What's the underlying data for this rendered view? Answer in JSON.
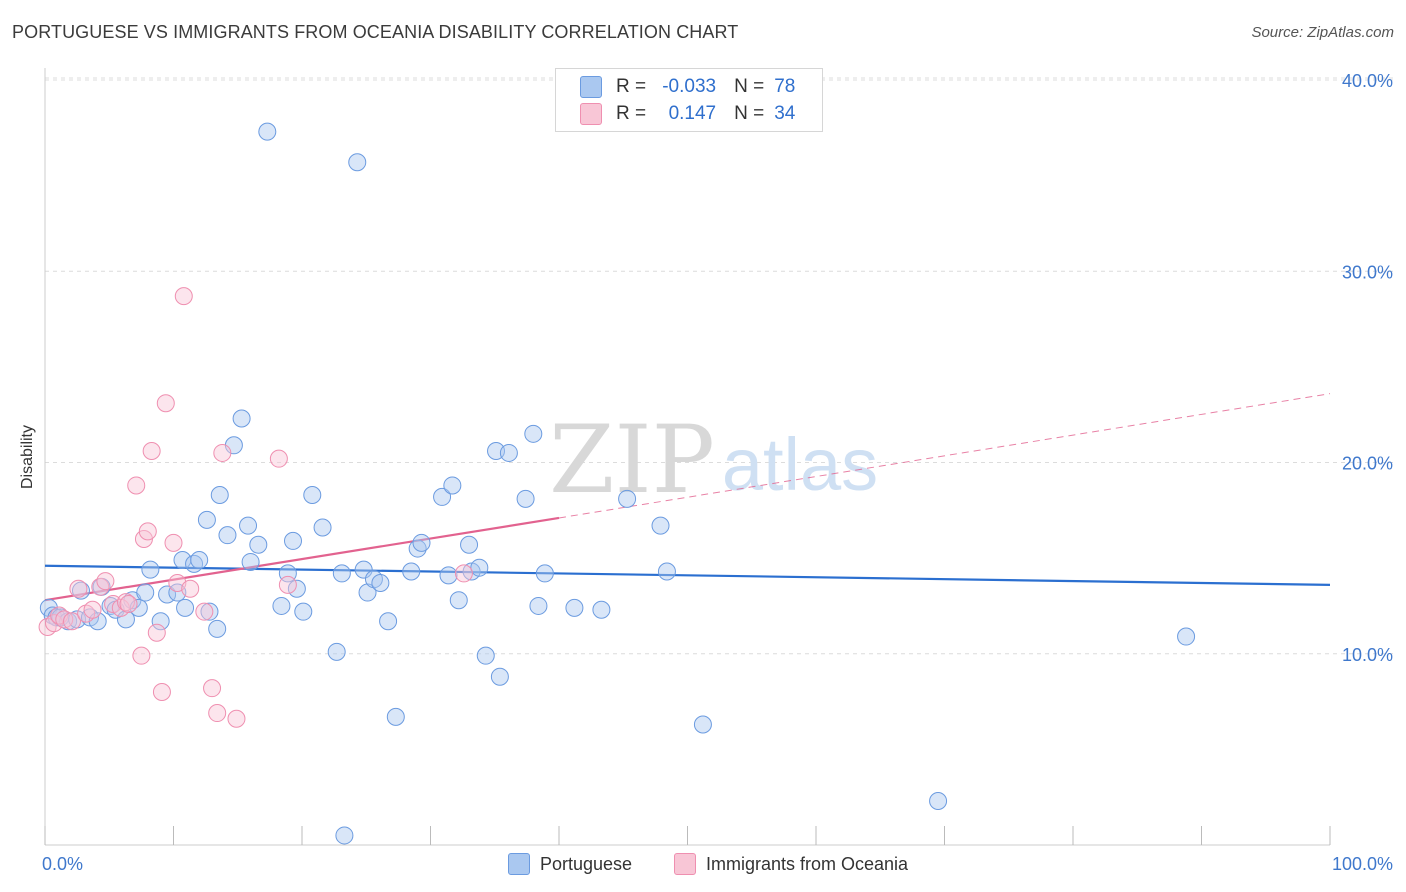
{
  "title": "PORTUGUESE VS IMMIGRANTS FROM OCEANIA DISABILITY CORRELATION CHART",
  "source": "Source: ZipAtlas.com",
  "watermark": {
    "zip": "ZIP",
    "atlas": "atlas"
  },
  "legend_stats": [
    {
      "r_label": "R =",
      "r_value": "-0.033",
      "n_label": "N =",
      "n_value": "78",
      "color": "#aac8f0",
      "border": "#6b9be0"
    },
    {
      "r_label": "R =",
      "r_value": "0.147",
      "n_label": "N =",
      "n_value": "34",
      "color": "#f8c6d6",
      "border": "#ef8fb0"
    }
  ],
  "bottom_legend": [
    {
      "label": "Portuguese",
      "color": "#aac8f0",
      "border": "#6b9be0"
    },
    {
      "label": "Immigrants from Oceania",
      "color": "#f8c6d6",
      "border": "#ef8fb0"
    }
  ],
  "chart_data": {
    "type": "scatter",
    "title": "PORTUGUESE VS IMMIGRANTS FROM OCEANIA DISABILITY CORRELATION CHART",
    "xlabel": "",
    "ylabel": "Disability",
    "xlim": [
      0,
      100
    ],
    "ylim": [
      0,
      40
    ],
    "x_tick_labels": [
      "0.0%",
      "100.0%"
    ],
    "y_ticks": [
      10,
      20,
      30,
      40
    ],
    "y_tick_labels": [
      "10.0%",
      "20.0%",
      "30.0%",
      "40.0%"
    ],
    "grid": true,
    "series": [
      {
        "name": "Portuguese",
        "color": "#6b9be0",
        "fill": "#aac8f0",
        "trend_color": "#2b6fd0",
        "trend": {
          "x0": 0,
          "y0": 14.6,
          "x1": 100,
          "y1": 13.6
        },
        "points": [
          [
            0.3,
            12.4
          ],
          [
            0.6,
            12.0
          ],
          [
            0.9,
            11.9
          ],
          [
            1.2,
            11.9
          ],
          [
            1.8,
            11.7
          ],
          [
            2.5,
            11.8
          ],
          [
            3.5,
            11.9
          ],
          [
            2.8,
            13.3
          ],
          [
            4.1,
            11.7
          ],
          [
            4.4,
            13.5
          ],
          [
            5.1,
            12.5
          ],
          [
            5.5,
            12.3
          ],
          [
            6.3,
            11.8
          ],
          [
            6.8,
            12.8
          ],
          [
            7.3,
            12.4
          ],
          [
            7.8,
            13.2
          ],
          [
            8.2,
            14.4
          ],
          [
            9.0,
            11.7
          ],
          [
            9.5,
            13.1
          ],
          [
            10.3,
            13.2
          ],
          [
            10.7,
            14.9
          ],
          [
            10.9,
            12.4
          ],
          [
            11.6,
            14.7
          ],
          [
            12.0,
            14.9
          ],
          [
            12.6,
            17.0
          ],
          [
            12.8,
            12.2
          ],
          [
            13.4,
            11.3
          ],
          [
            13.6,
            18.3
          ],
          [
            14.2,
            16.2
          ],
          [
            14.7,
            20.9
          ],
          [
            15.3,
            22.3
          ],
          [
            15.8,
            16.7
          ],
          [
            16.0,
            14.8
          ],
          [
            16.6,
            15.7
          ],
          [
            17.3,
            37.3
          ],
          [
            18.4,
            12.5
          ],
          [
            18.9,
            14.2
          ],
          [
            19.3,
            15.9
          ],
          [
            19.6,
            13.4
          ],
          [
            20.1,
            12.2
          ],
          [
            20.8,
            18.3
          ],
          [
            21.6,
            16.6
          ],
          [
            22.7,
            10.1
          ],
          [
            23.1,
            14.2
          ],
          [
            23.3,
            0.5
          ],
          [
            24.3,
            35.7
          ],
          [
            24.8,
            14.4
          ],
          [
            25.1,
            13.2
          ],
          [
            25.6,
            13.9
          ],
          [
            26.1,
            13.7
          ],
          [
            26.7,
            11.7
          ],
          [
            27.3,
            6.7
          ],
          [
            28.5,
            14.3
          ],
          [
            29.0,
            15.5
          ],
          [
            29.3,
            15.8
          ],
          [
            30.9,
            18.2
          ],
          [
            31.4,
            14.1
          ],
          [
            31.7,
            18.8
          ],
          [
            32.2,
            12.8
          ],
          [
            33.0,
            15.7
          ],
          [
            33.2,
            14.3
          ],
          [
            33.8,
            14.5
          ],
          [
            34.3,
            9.9
          ],
          [
            35.1,
            20.6
          ],
          [
            36.1,
            20.5
          ],
          [
            37.4,
            18.1
          ],
          [
            38.0,
            21.5
          ],
          [
            38.4,
            12.5
          ],
          [
            38.9,
            14.2
          ],
          [
            41.2,
            12.4
          ],
          [
            43.3,
            12.3
          ],
          [
            45.3,
            18.1
          ],
          [
            47.9,
            16.7
          ],
          [
            48.4,
            14.3
          ],
          [
            51.2,
            6.3
          ],
          [
            69.5,
            2.3
          ],
          [
            88.8,
            10.9
          ],
          [
            35.4,
            8.8
          ]
        ]
      },
      {
        "name": "Immigrants from Oceania",
        "color": "#ef8fb0",
        "fill": "#f8c6d6",
        "trend_color": "#e2628f",
        "trend": {
          "x0": 0,
          "y0": 12.8,
          "x1": 40,
          "y1": 17.1,
          "dash_x1": 100,
          "dash_y1": 23.6
        },
        "points": [
          [
            0.2,
            11.4
          ],
          [
            0.7,
            11.6
          ],
          [
            1.1,
            12.0
          ],
          [
            1.5,
            11.8
          ],
          [
            2.1,
            11.7
          ],
          [
            2.6,
            13.4
          ],
          [
            3.2,
            12.1
          ],
          [
            3.7,
            12.3
          ],
          [
            4.3,
            13.5
          ],
          [
            4.7,
            13.8
          ],
          [
            5.3,
            12.6
          ],
          [
            5.9,
            12.4
          ],
          [
            6.3,
            12.7
          ],
          [
            6.5,
            12.6
          ],
          [
            7.1,
            18.8
          ],
          [
            7.7,
            16.0
          ],
          [
            7.5,
            9.9
          ],
          [
            8.0,
            16.4
          ],
          [
            8.3,
            20.6
          ],
          [
            8.7,
            11.1
          ],
          [
            9.1,
            8.0
          ],
          [
            9.4,
            23.1
          ],
          [
            10.0,
            15.8
          ],
          [
            10.3,
            13.7
          ],
          [
            10.8,
            28.7
          ],
          [
            11.3,
            13.4
          ],
          [
            12.4,
            12.2
          ],
          [
            13.0,
            8.2
          ],
          [
            13.4,
            6.9
          ],
          [
            13.8,
            20.5
          ],
          [
            14.9,
            6.6
          ],
          [
            18.2,
            20.2
          ],
          [
            18.9,
            13.6
          ],
          [
            32.6,
            14.2
          ]
        ]
      }
    ]
  }
}
